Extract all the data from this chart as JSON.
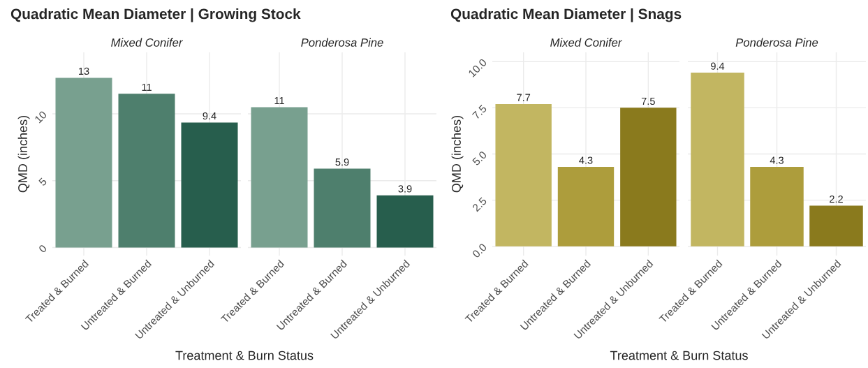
{
  "chart_data": [
    {
      "type": "bar",
      "title": "Quadratic Mean Diameter | Growing Stock",
      "subtitle": "Mixed Conifer",
      "ylabel": "QMD (inches)",
      "xlabel": "Treatment & Burn Status",
      "categories": [
        "Treated & Burned",
        "Untreated & Burned",
        "Untreated & Unburned"
      ],
      "values": [
        12.7,
        11.5,
        9.35
      ],
      "colors": [
        "#78a08f",
        "#4e7f6d",
        "#275e4d"
      ],
      "value_labels": [
        "13",
        "11",
        "9.4"
      ],
      "ylim": [
        -0.6,
        14.6
      ],
      "yticks": [
        0,
        5,
        10
      ],
      "grid": true,
      "legend": false
    },
    {
      "type": "bar",
      "subtitle": "Ponderosa Pine",
      "categories": [
        "Treated & Burned",
        "Untreated & Burned",
        "Untreated & Unburned"
      ],
      "values": [
        10.5,
        5.9,
        3.9
      ],
      "colors": [
        "#78a08f",
        "#4e7f6d",
        "#275e4d"
      ],
      "value_labels": [
        "11",
        "5.9",
        "3.9"
      ],
      "ylim": [
        -0.6,
        14.6
      ],
      "yticks": [
        0,
        5,
        10
      ],
      "grid": true,
      "legend": false,
      "tick_labels": "x"
    },
    {
      "type": "bar",
      "title": "Quadratic Mean Diameter | Snags",
      "subtitle": "Mixed Conifer",
      "ylabel": "QMD (inches)",
      "xlabel": "Treatment & Burn Status",
      "categories": [
        "Treated & Burned",
        "Untreated & Burned",
        "Untreated & Unburned"
      ],
      "values": [
        7.7,
        4.3,
        7.5
      ],
      "colors": [
        "#c2b661",
        "#ad9d3c",
        "#8a7a1d"
      ],
      "data_labels": true,
      "ylim": [
        -0.5,
        10.5
      ],
      "yticks": [
        {
          "value": 0,
          "label": "0.0"
        },
        2.5,
        {
          "value": 5,
          "label": "5.0"
        },
        7.5,
        {
          "value": 10,
          "label": "10.0"
        }
      ],
      "grid": true,
      "legend": false
    },
    {
      "type": "bar",
      "subtitle": "Ponderosa Pine",
      "categories": [
        "Treated & Burned",
        "Untreated & Burned",
        "Untreated & Unburned"
      ],
      "values": [
        9.4,
        4.3,
        2.2
      ],
      "colors": [
        "#c2b661",
        "#ad9d3c",
        "#8a7a1d"
      ],
      "data_labels": true,
      "ylim": [
        -0.5,
        10.5
      ],
      "yticks": [
        0,
        2.5,
        5,
        7.5,
        10
      ],
      "grid": true,
      "legend": false,
      "tick_labels": "x"
    }
  ]
}
